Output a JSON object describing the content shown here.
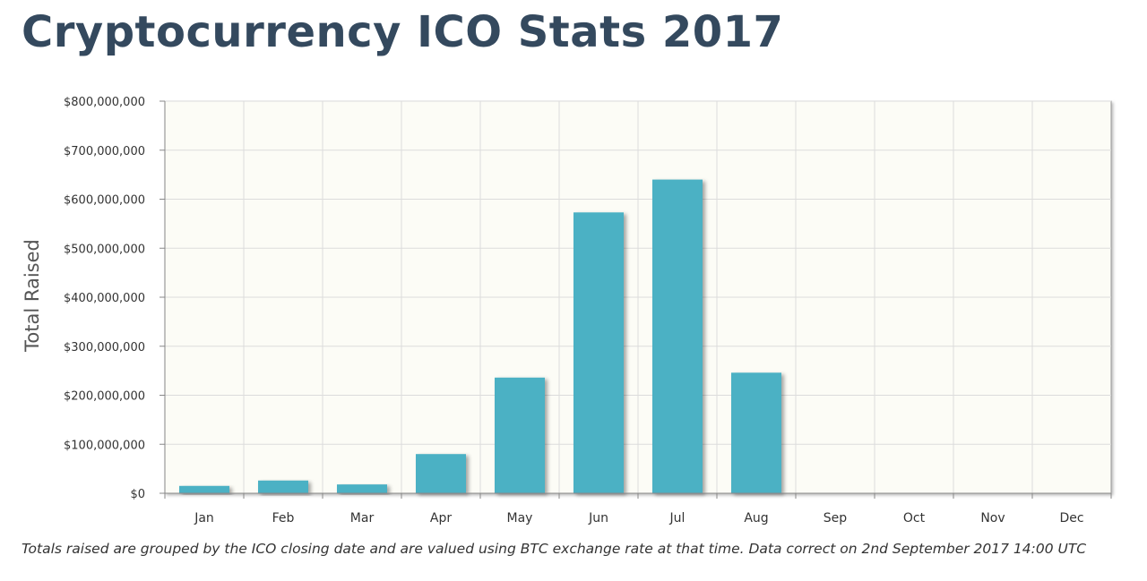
{
  "title": "Cryptocurrency ICO Stats 2017",
  "footnote": "Totals raised are grouped by the ICO closing date and are valued using BTC exchange rate at that time. Data correct on 2nd September 2017 14:00 UTC",
  "colors": {
    "bar": "#4bb1c4",
    "plot_background": "#fcfcf6",
    "grid": "#dcdcdc",
    "axis": "#888888",
    "title": "#34495e"
  },
  "chart_data": {
    "type": "bar",
    "title": "Cryptocurrency ICO Stats 2017",
    "xlabel": "",
    "ylabel": "Total Raised",
    "categories": [
      "Jan",
      "Feb",
      "Mar",
      "Apr",
      "May",
      "Jun",
      "Jul",
      "Aug",
      "Sep",
      "Oct",
      "Nov",
      "Dec"
    ],
    "values": [
      15000000,
      26000000,
      18000000,
      80000000,
      236000000,
      573000000,
      640000000,
      246000000,
      0,
      0,
      0,
      0
    ],
    "ylim": [
      0,
      800000000
    ],
    "yticks": [
      0,
      100000000,
      200000000,
      300000000,
      400000000,
      500000000,
      600000000,
      700000000,
      800000000
    ],
    "ytick_labels": [
      "$0",
      "$100,000,000",
      "$200,000,000",
      "$300,000,000",
      "$400,000,000",
      "$500,000,000",
      "$600,000,000",
      "$700,000,000",
      "$800,000,000"
    ],
    "grid": true,
    "legend": "none"
  }
}
